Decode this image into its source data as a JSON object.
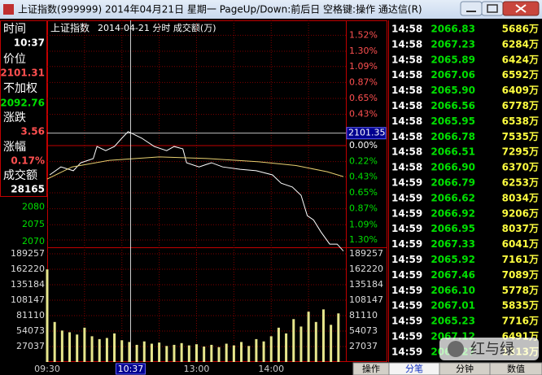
{
  "window": {
    "title": "上证指数(999999) 2014年04月21日 星期一 PageUp/Down:前后日 空格键:操作 通达信(R)"
  },
  "info_panel": {
    "items": [
      {
        "label": "时间",
        "value": "10:37",
        "color": "#ffffff"
      },
      {
        "label": "价位",
        "value": "2101.31",
        "color": "#ff5050"
      },
      {
        "label": "不加权",
        "value": "2092.76",
        "color": "#00e000"
      },
      {
        "label": "涨跌",
        "value": "3.56",
        "color": "#ff5050"
      },
      {
        "label": "涨幅",
        "value": "0.17%",
        "color": "#ff5050"
      },
      {
        "label": "成交额",
        "value": "28165",
        "color": "#ffffff"
      }
    ]
  },
  "chart_data": [
    {
      "type": "line",
      "title": "上证指数",
      "subtitle": "2014-04-21 分时 成交额(万)",
      "xlim": [
        0,
        240
      ],
      "xticks": [
        {
          "value": 0,
          "label": "09:30"
        },
        {
          "value": 120,
          "label": "13:00"
        },
        {
          "value": 180,
          "label": "14:00"
        }
      ],
      "ylim": [
        2066.5,
        2131.6
      ],
      "yticks": [
        2080,
        2075,
        2070
      ],
      "y2lim": [
        -1.49,
        1.614
      ],
      "y2ticks": [
        {
          "value": 1.52,
          "label": "1.52%"
        },
        {
          "value": 1.3,
          "label": "1.30%"
        },
        {
          "value": 1.09,
          "label": "1.09%"
        },
        {
          "value": 0.87,
          "label": "0.87%"
        },
        {
          "value": 0.65,
          "label": "0.65%"
        },
        {
          "value": 0.43,
          "label": "0.43%"
        },
        {
          "value": 0,
          "label": "0.00%"
        },
        {
          "value": -0.22,
          "label": "0.22%"
        },
        {
          "value": -0.43,
          "label": "0.43%"
        },
        {
          "value": -0.65,
          "label": "0.65%"
        },
        {
          "value": -0.87,
          "label": "0.87%"
        },
        {
          "value": -1.09,
          "label": "1.09%"
        },
        {
          "value": -1.3,
          "label": "1.30%"
        }
      ],
      "grid": true,
      "crosshair": {
        "x": {
          "value": 67,
          "label": "10:37"
        },
        "y": 2101.35
      },
      "series": [
        {
          "color": "#ffffff",
          "x": [
            2,
            11,
            21,
            27,
            37,
            40,
            47,
            54,
            60,
            65,
            68,
            76,
            86,
            96,
            102,
            109,
            112,
            122,
            132,
            141,
            155,
            168,
            181,
            188,
            197,
            204,
            209,
            214,
            220,
            227,
            233,
            238
          ],
          "values": [
            2089.3,
            2091.6,
            2090.5,
            2092.8,
            2094.0,
            2097.5,
            2096.3,
            2097.5,
            2099.9,
            2101.8,
            2101.3,
            2099.9,
            2097.5,
            2096.3,
            2097.5,
            2096.8,
            2092.8,
            2091.6,
            2092.8,
            2091.6,
            2090.9,
            2090.5,
            2089.3,
            2086.9,
            2085.8,
            2083.4,
            2077.5,
            2076.3,
            2072.8,
            2069.3,
            2069.3,
            2067.3
          ]
        },
        {
          "color": "#e8d070",
          "x": [
            0,
            20,
            50,
            90,
            130,
            170,
            200,
            225,
            238
          ],
          "values": [
            2088.1,
            2091.6,
            2093.5,
            2094.5,
            2094.0,
            2093.1,
            2092.0,
            2090.2,
            2088.8
          ]
        }
      ]
    },
    {
      "type": "bar",
      "color": "#e6e68c",
      "xlim": [
        0,
        240
      ],
      "ylim": [
        0,
        189257
      ],
      "yticks": [
        189257,
        162220,
        135184,
        108147,
        81110,
        54073,
        27037
      ],
      "grid": true,
      "x": [
        0,
        6,
        12,
        18,
        24,
        30,
        36,
        42,
        48,
        54,
        60,
        66,
        72,
        78,
        84,
        90,
        96,
        102,
        108,
        114,
        120,
        126,
        132,
        138,
        144,
        150,
        156,
        162,
        168,
        174,
        180,
        186,
        192,
        198,
        204,
        210,
        216,
        222,
        228,
        234
      ],
      "values": [
        162000,
        70000,
        55000,
        52000,
        48000,
        60000,
        45000,
        40000,
        42000,
        50000,
        38000,
        35000,
        30000,
        36000,
        32000,
        34000,
        28000,
        30000,
        33000,
        29000,
        31000,
        27000,
        30000,
        26000,
        32000,
        29000,
        35000,
        28000,
        40000,
        36000,
        45000,
        60000,
        50000,
        75000,
        62000,
        88000,
        70000,
        92000,
        65000,
        85000
      ]
    }
  ],
  "ticks_table": {
    "rows": [
      [
        "14:58",
        "2066.83",
        "5686万"
      ],
      [
        "14:58",
        "2067.23",
        "6284万"
      ],
      [
        "14:58",
        "2065.89",
        "6424万"
      ],
      [
        "14:58",
        "2067.06",
        "6592万"
      ],
      [
        "14:58",
        "2065.90",
        "6409万"
      ],
      [
        "14:58",
        "2066.56",
        "6778万"
      ],
      [
        "14:58",
        "2065.95",
        "6538万"
      ],
      [
        "14:58",
        "2066.78",
        "7535万"
      ],
      [
        "14:58",
        "2066.51",
        "7295万"
      ],
      [
        "14:58",
        "2066.90",
        "6370万"
      ],
      [
        "14:59",
        "2066.79",
        "6253万"
      ],
      [
        "14:59",
        "2066.62",
        "8034万"
      ],
      [
        "14:59",
        "2066.92",
        "9206万"
      ],
      [
        "14:59",
        "2066.95",
        "8037万"
      ],
      [
        "14:59",
        "2067.33",
        "6041万"
      ],
      [
        "14:59",
        "2065.92",
        "7161万"
      ],
      [
        "14:59",
        "2067.46",
        "7089万"
      ],
      [
        "14:59",
        "2066.10",
        "5778万"
      ],
      [
        "14:59",
        "2067.01",
        "5835万"
      ],
      [
        "14:59",
        "2065.23",
        "7716万"
      ],
      [
        "14:59",
        "2067.12",
        "6491万"
      ],
      [
        "14:59",
        "2067.27",
        "1313万"
      ]
    ]
  },
  "bottom_tabs": [
    "操作",
    "分笔",
    "分钟",
    "数值"
  ],
  "watermark": "红与绿"
}
